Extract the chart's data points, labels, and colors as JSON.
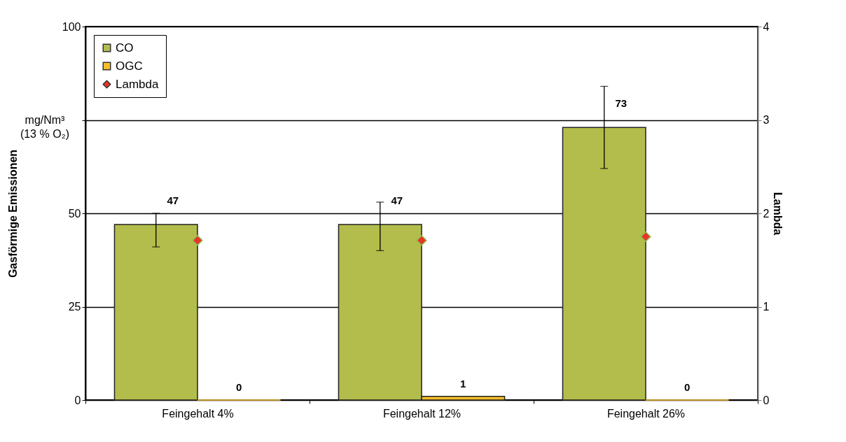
{
  "chart_data": {
    "type": "bar",
    "ylabel": "Gasförmige Emissionen",
    "y2label": "Lambda",
    "categories": [
      "Feingehalt 4%",
      "Feingehalt 12%",
      "Feingehalt 26%"
    ],
    "series": [
      {
        "name": "CO",
        "color": "#b3bd4b",
        "values": [
          47,
          47,
          73
        ],
        "value_labels": [
          "47",
          "47",
          "73"
        ],
        "errors": [
          [
            41,
            50
          ],
          [
            40,
            53
          ],
          [
            62,
            84
          ]
        ]
      },
      {
        "name": "OGC",
        "color": "#f5be2a",
        "values": [
          0,
          1,
          0
        ],
        "value_labels": [
          "0",
          "1",
          "0"
        ]
      },
      {
        "name": "Lambda",
        "type": "scatter",
        "axis": "y2",
        "color": "#e8342a",
        "marker": "diamond",
        "values": [
          1.71,
          1.71,
          1.75
        ]
      }
    ],
    "ylim": [
      0,
      100
    ],
    "yticks": [
      0,
      25,
      50,
      {
        "value": 75,
        "label": null
      },
      100
    ],
    "annotations": [
      "mg/Nm³ (13 % O₂)"
    ],
    "y2lim": [
      0,
      4
    ],
    "y2ticks": [
      0,
      1,
      2,
      3,
      4
    ],
    "grid": "y",
    "legend": "top left"
  }
}
